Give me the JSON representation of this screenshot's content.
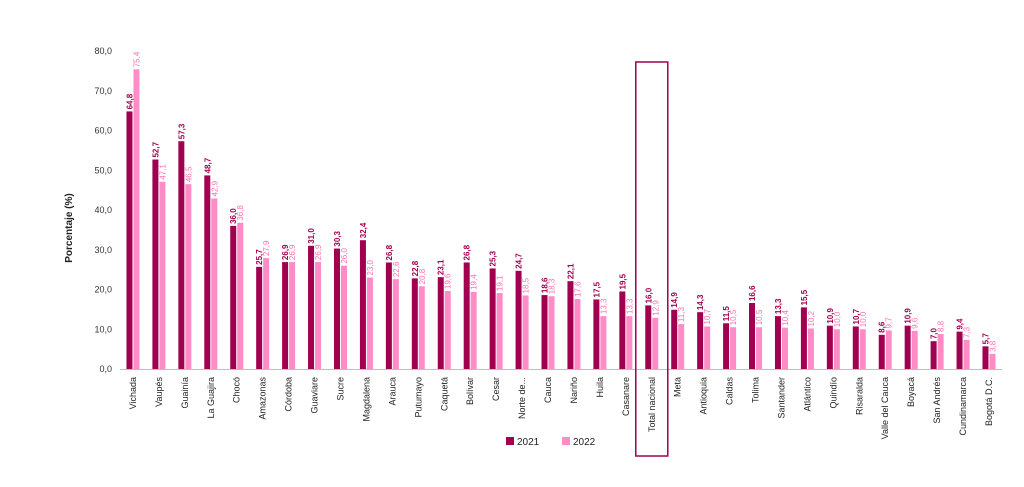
{
  "chart_data": {
    "type": "bar",
    "ylabel": "Porcentaje (%)",
    "ylim": [
      0,
      80
    ],
    "ytick_labels": [
      "0,0",
      "10,0",
      "20,0",
      "30,0",
      "40,0",
      "50,0",
      "60,0",
      "70,0",
      "80,0"
    ],
    "categories": [
      "Vichada",
      "Vaupés",
      "Guainía",
      "La Guajira",
      "Chocó",
      "Amazonas",
      "Córdoba",
      "Guaviare",
      "Sucre",
      "Magdalena",
      "Arauca",
      "Putumayo",
      "Caquetá",
      "Bolívar",
      "Cesar",
      "Norte de...",
      "Cauca",
      "Nariño",
      "Huila",
      "Casanare",
      "Total nacional",
      "Meta",
      "Antioquia",
      "Caldas",
      "Tolima",
      "Santander",
      "Atlántico",
      "Quindío",
      "Risaralda",
      "Valle del Cauca",
      "Boyacá",
      "San Andrés",
      "Cundinamarca",
      "Bogotá D.C."
    ],
    "series": [
      {
        "name": "2021",
        "color": "#a0004f",
        "values": [
          64.8,
          52.7,
          57.3,
          48.7,
          36.0,
          25.7,
          26.9,
          31.0,
          30.3,
          32.4,
          26.8,
          22.8,
          23.1,
          26.8,
          25.3,
          24.7,
          18.6,
          22.1,
          17.5,
          19.5,
          16.0,
          14.9,
          14.3,
          11.5,
          16.6,
          13.3,
          15.5,
          10.9,
          10.7,
          8.6,
          10.9,
          7.0,
          9.4,
          5.7
        ],
        "labels": [
          "64,8",
          "52,7",
          "57,3",
          "48,7",
          "36,0",
          "25,7",
          "26,9",
          "31,0",
          "30,3",
          "32,4",
          "26,8",
          "22,8",
          "23,1",
          "26,8",
          "25,3",
          "24,7",
          "18,6",
          "22,1",
          "17,5",
          "19,5",
          "16,0",
          "14,9",
          "14,3",
          "11,5",
          "16,6",
          "13,3",
          "15,5",
          "10,9",
          "10,7",
          "8,6",
          "10,9",
          "7,0",
          "9,4",
          "5,7"
        ]
      },
      {
        "name": "2022",
        "color": "#ff8cc6",
        "values": [
          75.4,
          47.1,
          46.5,
          42.9,
          36.8,
          27.9,
          26.9,
          26.9,
          26.0,
          23.0,
          22.6,
          20.8,
          19.6,
          19.4,
          19.1,
          18.5,
          18.3,
          17.6,
          13.3,
          13.3,
          12.9,
          11.3,
          10.7,
          10.5,
          10.5,
          10.4,
          10.2,
          10.0,
          10.0,
          9.7,
          9.6,
          8.8,
          7.3,
          3.8
        ],
        "labels": [
          "75,4",
          "47,1",
          "46,5",
          "42,9",
          "36,8",
          "27,9",
          "26,9",
          "26,9",
          "26,0",
          "23,0",
          "22,6",
          "20,8",
          "19,6",
          "19,4",
          "19,1",
          "18,5",
          "18,3",
          "17,6",
          "13,3",
          "13,3",
          "12,9",
          "11,3",
          "10,7",
          "10,5",
          "10,5",
          "10,4",
          "10,2",
          "10,0",
          "10,0",
          "9,7",
          "9,6",
          "8,8",
          "7,3",
          "3,8"
        ]
      }
    ],
    "highlight_category": "Total nacional",
    "highlight_color": "#a0004f",
    "legend_position": "bottom-center",
    "grid": false
  }
}
